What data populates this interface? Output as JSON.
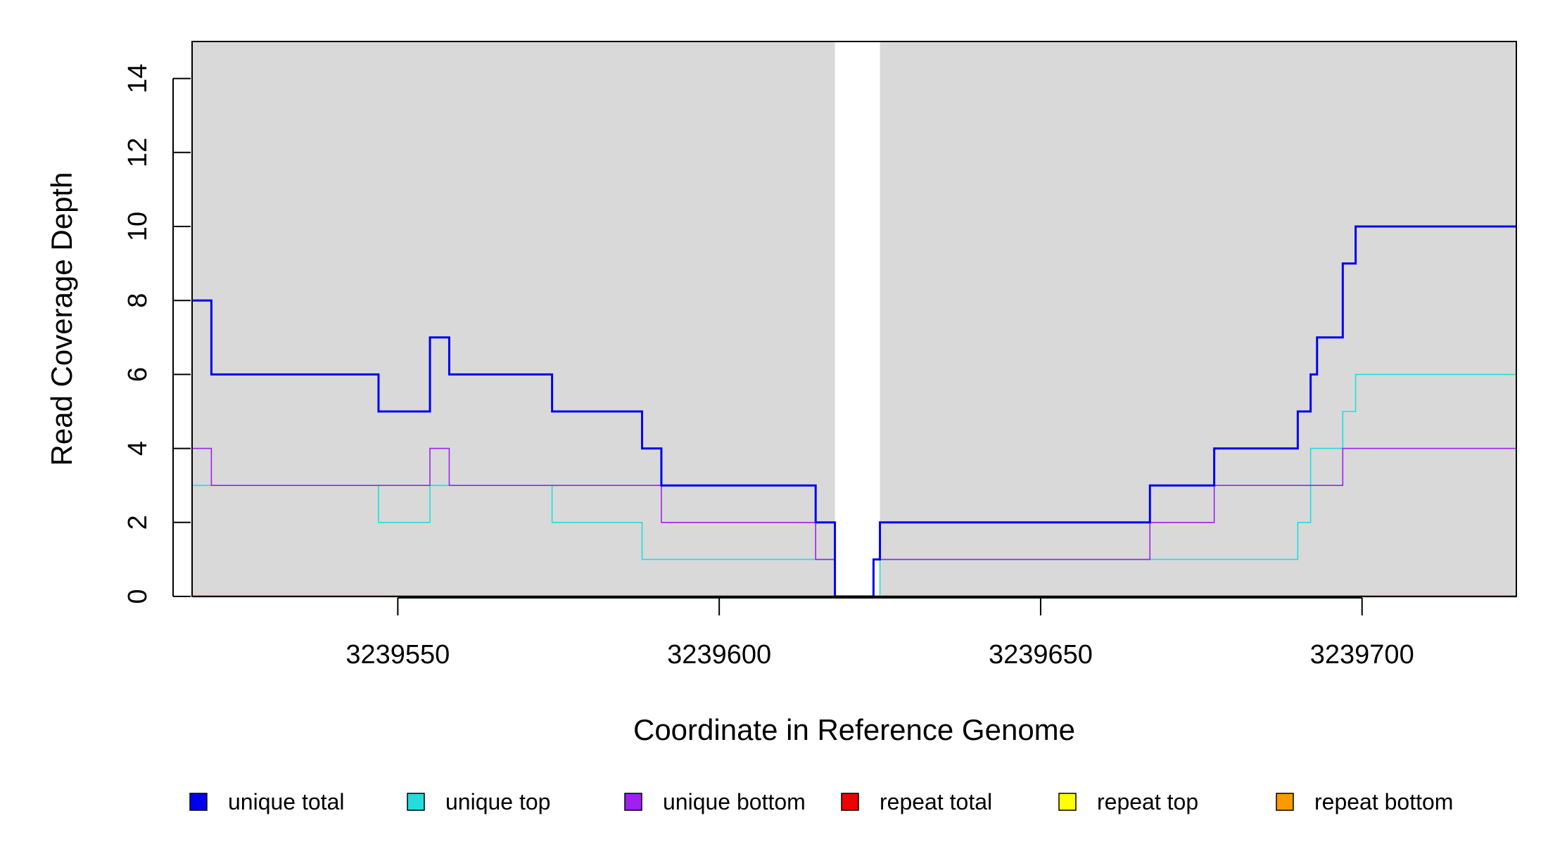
{
  "chart_data": {
    "type": "line",
    "step": true,
    "title": "",
    "xlabel": "Coordinate in Reference Genome",
    "ylabel": "Read Coverage Depth",
    "xlim": [
      3239518,
      3239724
    ],
    "ylim": [
      0,
      15
    ],
    "xticks": [
      3239550,
      3239600,
      3239650,
      3239700
    ],
    "xtick_labels": [
      "3239550",
      "3239600",
      "3239650",
      "3239700"
    ],
    "yticks": [
      0,
      2,
      4,
      6,
      8,
      10,
      12,
      14
    ],
    "ytick_labels": [
      "0",
      "2",
      "4",
      "6",
      "8",
      "10",
      "12",
      "14"
    ],
    "background_color": "#d9d9d9",
    "highlight_region": {
      "x": [
        3239618,
        3239625
      ],
      "color": "#ffffff"
    },
    "grid": false,
    "legend_position": "bottom",
    "series": [
      {
        "name": "unique total",
        "color": "#0000ee",
        "x": [
          3239518,
          3239521,
          3239544,
          3239547,
          3239555,
          3239558,
          3239574,
          3239588,
          3239591,
          3239615,
          3239618,
          3239624,
          3239625,
          3239667,
          3239677,
          3239690,
          3239692,
          3239693,
          3239697,
          3239699,
          3239724
        ],
        "y": [
          8,
          6,
          6,
          5,
          7,
          6,
          5,
          4,
          3,
          2,
          0,
          1,
          2,
          3,
          4,
          5,
          6,
          7,
          9,
          10,
          10
        ]
      },
      {
        "name": "unique top",
        "color": "#22dddd",
        "x": [
          3239518,
          3239547,
          3239555,
          3239574,
          3239588,
          3239618,
          3239625,
          3239690,
          3239692,
          3239697,
          3239699,
          3239724
        ],
        "y": [
          3,
          2,
          3,
          2,
          1,
          0,
          1,
          2,
          4,
          5,
          6,
          6
        ]
      },
      {
        "name": "unique bottom",
        "color": "#a020f0",
        "x": [
          3239518,
          3239521,
          3239555,
          3239558,
          3239591,
          3239615,
          3239618,
          3239624,
          3239667,
          3239677,
          3239697,
          3239724
        ],
        "y": [
          4,
          3,
          4,
          3,
          2,
          1,
          0,
          1,
          2,
          3,
          4,
          4
        ]
      },
      {
        "name": "repeat total",
        "color": "#ee0000",
        "x": [
          3239518,
          3239724
        ],
        "y": [
          0,
          0
        ]
      },
      {
        "name": "repeat top",
        "color": "#ffff00",
        "x": [
          3239518,
          3239724
        ],
        "y": [
          0,
          0
        ]
      },
      {
        "name": "repeat bottom",
        "color": "#ff9900",
        "x": [
          3239518,
          3239724
        ],
        "y": [
          0,
          0
        ]
      }
    ]
  }
}
